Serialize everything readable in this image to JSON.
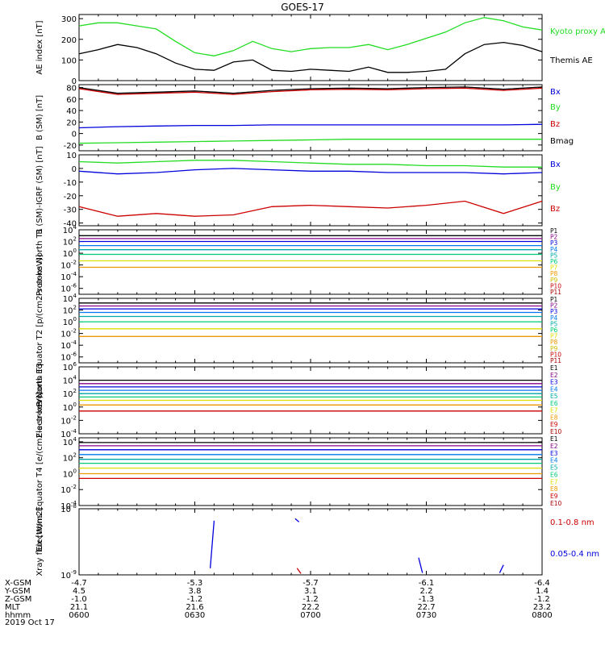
{
  "title": "GOES-17",
  "date": "2019 Oct 17",
  "colors": {
    "green": "#22dd22",
    "black": "#000000",
    "blue": "#0000dd",
    "red": "#cc0000",
    "cyan": "#00cccc",
    "teal": "#00aaaa",
    "yellow": "#dddd00",
    "orange": "#ee9900",
    "gold": "#ccbb00",
    "darkred": "#aa0000",
    "navy": "#000099",
    "purple": "#880088"
  },
  "ephemeris": {
    "rows": [
      {
        "label": "X-GSM",
        "values": [
          "-4.7",
          "-5.3",
          "-5.7",
          "-6.1",
          "-6.4"
        ]
      },
      {
        "label": "Y-GSM",
        "values": [
          "4.5",
          "3.8",
          "3.1",
          "2.2",
          "1.4"
        ]
      },
      {
        "label": "Z-GSM",
        "values": [
          "-1.0",
          "-1.2",
          "-1.2",
          "-1.3",
          "-1.2"
        ]
      },
      {
        "label": "MLT",
        "values": [
          "21.1",
          "21.6",
          "22.2",
          "22.7",
          "23.2"
        ]
      },
      {
        "label": "hhmm",
        "values": [
          "0600",
          "0630",
          "0700",
          "0730",
          "0800"
        ]
      }
    ]
  },
  "chart_data": [
    {
      "id": "ae",
      "type": "line",
      "ylabel": "AE index [nT]",
      "ylim": [
        0,
        320
      ],
      "ticks": [
        0,
        100,
        200,
        300
      ],
      "tick_labels": [
        "0",
        "100",
        "200",
        "300"
      ],
      "log": false,
      "x": [
        0,
        5,
        10,
        15,
        20,
        25,
        30,
        35,
        40,
        45,
        50,
        55,
        60,
        65,
        70,
        75,
        80,
        85,
        90,
        95,
        100,
        105,
        110,
        115,
        120
      ],
      "legend": [
        {
          "text": "Kyoto proxy AE",
          "color": "#22dd22"
        },
        {
          "text": "Themis AE",
          "color": "#000000"
        }
      ],
      "series": [
        {
          "name": "Kyoto proxy AE",
          "color": "#22dd22",
          "values": [
            265,
            280,
            280,
            265,
            250,
            190,
            135,
            120,
            145,
            190,
            155,
            140,
            155,
            160,
            160,
            175,
            150,
            175,
            205,
            235,
            280,
            305,
            290,
            260,
            245
          ]
        },
        {
          "name": "Themis AE",
          "color": "#000000",
          "values": [
            130,
            150,
            175,
            160,
            130,
            85,
            55,
            50,
            90,
            100,
            50,
            45,
            55,
            50,
            45,
            65,
            40,
            40,
            45,
            55,
            130,
            175,
            185,
            170,
            140
          ]
        }
      ]
    },
    {
      "id": "bsm",
      "type": "line",
      "ylabel": "B (SM) [nT]",
      "ylim": [
        -30,
        85
      ],
      "ticks": [
        -20,
        0,
        20,
        40,
        60,
        80
      ],
      "tick_labels": [
        "-20",
        "0",
        "20",
        "40",
        "60",
        "80"
      ],
      "log": false,
      "x": [
        0,
        10,
        20,
        30,
        40,
        50,
        60,
        70,
        80,
        90,
        100,
        110,
        120
      ],
      "legend": [
        {
          "text": "Bx",
          "color": "#0000dd"
        },
        {
          "text": "By",
          "color": "#22dd22"
        },
        {
          "text": "Bz",
          "color": "#cc0000"
        },
        {
          "text": "Bmag",
          "color": "#000000"
        }
      ],
      "series": [
        {
          "name": "Bx",
          "color": "#0000dd",
          "values": [
            10,
            12,
            13,
            14,
            14,
            15,
            15,
            15,
            15,
            15,
            15,
            15,
            16
          ]
        },
        {
          "name": "By",
          "color": "#22dd22",
          "values": [
            -17,
            -16,
            -15,
            -14,
            -13,
            -12,
            -11,
            -10,
            -10,
            -10,
            -10,
            -10,
            -10
          ]
        },
        {
          "name": "Bz",
          "color": "#cc0000",
          "values": [
            78,
            68,
            70,
            72,
            68,
            73,
            76,
            77,
            76,
            78,
            79,
            75,
            79
          ]
        },
        {
          "name": "Bmag",
          "color": "#000000",
          "values": [
            80,
            70,
            72,
            74,
            70,
            75,
            78,
            79,
            78,
            80,
            81,
            77,
            81
          ]
        }
      ]
    },
    {
      "id": "bigrf",
      "type": "line",
      "ylabel": "B (SM)-IGRF (SM) [nT]",
      "ylim": [
        -42,
        10
      ],
      "ticks": [
        -40,
        -30,
        -20,
        -10,
        0,
        10
      ],
      "tick_labels": [
        "-40",
        "-30",
        "-20",
        "-10",
        "0",
        "10"
      ],
      "log": false,
      "x": [
        0,
        10,
        20,
        30,
        40,
        50,
        60,
        70,
        80,
        90,
        100,
        110,
        120
      ],
      "legend": [
        {
          "text": "Bx",
          "color": "#0000dd"
        },
        {
          "text": "By",
          "color": "#22dd22"
        },
        {
          "text": "Bz",
          "color": "#cc0000"
        }
      ],
      "series": [
        {
          "name": "Bx",
          "color": "#0000dd",
          "values": [
            -2,
            -4,
            -3,
            -1,
            0,
            -1,
            -2,
            -2,
            -3,
            -3,
            -3,
            -4,
            -3
          ]
        },
        {
          "name": "By",
          "color": "#22dd22",
          "values": [
            5,
            4,
            5,
            6,
            6,
            5,
            4,
            3,
            3,
            2,
            2,
            1,
            1
          ]
        },
        {
          "name": "Bz",
          "color": "#cc0000",
          "values": [
            -28,
            -35,
            -33,
            -35,
            -34,
            -28,
            -27,
            -28,
            -29,
            -27,
            -24,
            -33,
            -24
          ]
        }
      ]
    },
    {
      "id": "pnorth",
      "type": "line",
      "ylabel": "Protons North T1",
      "ylim": [
        -7,
        4
      ],
      "ticks": [
        -6,
        -4,
        -2,
        0,
        2,
        4
      ],
      "tick_labels": [
        "10-6",
        "10-4",
        "10-2",
        "100",
        "102",
        "104"
      ],
      "log": true,
      "x": [
        0,
        120
      ],
      "legend": [
        {
          "text": "P1",
          "color": "#000000"
        },
        {
          "text": "P2",
          "color": "#880088"
        },
        {
          "text": "P3",
          "color": "#0000dd"
        },
        {
          "text": "P4",
          "color": "#0077ee"
        },
        {
          "text": "P5",
          "color": "#00aaaa"
        },
        {
          "text": "P6",
          "color": "#00cc77"
        },
        {
          "text": "P7",
          "color": "#dddd00"
        },
        {
          "text": "P8",
          "color": "#ee9900"
        },
        {
          "text": "P9",
          "color": "#ccbb00"
        },
        {
          "text": "P10",
          "color": "#cc0000"
        },
        {
          "text": "P11",
          "color": "#aa0000"
        }
      ],
      "series": [
        {
          "name": "P1",
          "color": "#000000",
          "values": [
            3.0,
            3.0
          ]
        },
        {
          "name": "P2",
          "color": "#880088",
          "values": [
            2.5,
            2.5
          ]
        },
        {
          "name": "P3",
          "color": "#0000dd",
          "values": [
            2.0,
            2.0
          ]
        },
        {
          "name": "P4",
          "color": "#0077ee",
          "values": [
            1.3,
            1.3
          ]
        },
        {
          "name": "P5",
          "color": "#00aaaa",
          "values": [
            0.6,
            0.6
          ]
        },
        {
          "name": "P6",
          "color": "#00cc77",
          "values": [
            -0.2,
            -0.2
          ]
        },
        {
          "name": "P7",
          "color": "#dddd00",
          "values": [
            -1.3,
            -1.3
          ]
        },
        {
          "name": "P8",
          "color": "#ee9900",
          "values": [
            -2.4,
            -2.4
          ]
        }
      ]
    },
    {
      "id": "pequator",
      "type": "line",
      "ylabel": "Protons Equator T2 [p/(cm2-s-sr-keV)]",
      "ylim": [
        -7,
        4
      ],
      "ticks": [
        -6,
        -4,
        -2,
        0,
        2,
        4
      ],
      "tick_labels": [
        "10-6",
        "10-4",
        "10-2",
        "100",
        "102",
        "104"
      ],
      "log": true,
      "x": [
        0,
        120
      ],
      "legend": [
        {
          "text": "P1",
          "color": "#000000"
        },
        {
          "text": "P2",
          "color": "#880088"
        },
        {
          "text": "P3",
          "color": "#0000dd"
        },
        {
          "text": "P4",
          "color": "#0077ee"
        },
        {
          "text": "P5",
          "color": "#00aaaa"
        },
        {
          "text": "P6",
          "color": "#00cc77"
        },
        {
          "text": "P7",
          "color": "#dddd00"
        },
        {
          "text": "P8",
          "color": "#ee9900"
        },
        {
          "text": "P9",
          "color": "#ccbb00"
        },
        {
          "text": "P10",
          "color": "#cc0000"
        },
        {
          "text": "P11",
          "color": "#aa0000"
        }
      ],
      "series": [
        {
          "name": "P1",
          "color": "#000000",
          "values": [
            3.2,
            3.2
          ]
        },
        {
          "name": "P2",
          "color": "#880088",
          "values": [
            2.7,
            2.7
          ]
        },
        {
          "name": "P3",
          "color": "#0000dd",
          "values": [
            2.2,
            2.2
          ]
        },
        {
          "name": "P4",
          "color": "#0077ee",
          "values": [
            1.6,
            1.6
          ]
        },
        {
          "name": "P5",
          "color": "#00aaaa",
          "values": [
            0.9,
            0.9
          ]
        },
        {
          "name": "P6",
          "color": "#00cc77",
          "values": [
            0.0,
            0.0
          ]
        },
        {
          "name": "P7",
          "color": "#dddd00",
          "values": [
            -1.2,
            -1.2
          ]
        },
        {
          "name": "P8",
          "color": "#ee9900",
          "values": [
            -2.5,
            -2.5
          ]
        }
      ]
    },
    {
      "id": "enorth",
      "type": "line",
      "ylabel": "Electrons North T3",
      "ylim": [
        -4,
        6
      ],
      "ticks": [
        -4,
        -2,
        0,
        2,
        4,
        6
      ],
      "tick_labels": [
        "10-4",
        "10-2",
        "100",
        "102",
        "104",
        "106"
      ],
      "log": true,
      "x": [
        0,
        120
      ],
      "legend": [
        {
          "text": "E1",
          "color": "#000000"
        },
        {
          "text": "E2",
          "color": "#880088"
        },
        {
          "text": "E3",
          "color": "#0000dd"
        },
        {
          "text": "E4",
          "color": "#0077ee"
        },
        {
          "text": "E5",
          "color": "#00aaaa"
        },
        {
          "text": "E6",
          "color": "#00cc77"
        },
        {
          "text": "E7",
          "color": "#dddd00"
        },
        {
          "text": "E8",
          "color": "#ee9900"
        },
        {
          "text": "E9",
          "color": "#cc0000"
        },
        {
          "text": "E10",
          "color": "#aa0000"
        }
      ],
      "series": [
        {
          "name": "E1",
          "color": "#000000",
          "values": [
            4.0,
            4.0
          ]
        },
        {
          "name": "E2",
          "color": "#880088",
          "values": [
            3.5,
            3.5
          ]
        },
        {
          "name": "E3",
          "color": "#0000dd",
          "values": [
            3.0,
            3.0
          ]
        },
        {
          "name": "E4",
          "color": "#0077ee",
          "values": [
            2.5,
            2.5
          ]
        },
        {
          "name": "E5",
          "color": "#00aaaa",
          "values": [
            2.0,
            2.0
          ]
        },
        {
          "name": "E6",
          "color": "#00cc77",
          "values": [
            1.5,
            1.5
          ]
        },
        {
          "name": "E7",
          "color": "#dddd00",
          "values": [
            1.0,
            1.0
          ]
        },
        {
          "name": "E8",
          "color": "#ee9900",
          "values": [
            0.3,
            0.3
          ]
        },
        {
          "name": "E9",
          "color": "#cc0000",
          "values": [
            -0.6,
            -0.6
          ]
        }
      ]
    },
    {
      "id": "eequator",
      "type": "line",
      "ylabel": "Electrons Equator T4 [e/(cm2-s-sr-keV)]",
      "ylim": [
        -4,
        4.5
      ],
      "ticks": [
        -4,
        -2,
        0,
        2,
        4
      ],
      "tick_labels": [
        "10-4",
        "10-2",
        "100",
        "102",
        "104"
      ],
      "log": true,
      "x": [
        0,
        120
      ],
      "legend": [
        {
          "text": "E1",
          "color": "#000000"
        },
        {
          "text": "E2",
          "color": "#880088"
        },
        {
          "text": "E3",
          "color": "#0000dd"
        },
        {
          "text": "E4",
          "color": "#0077ee"
        },
        {
          "text": "E5",
          "color": "#00aaaa"
        },
        {
          "text": "E6",
          "color": "#00cc77"
        },
        {
          "text": "E7",
          "color": "#dddd00"
        },
        {
          "text": "E8",
          "color": "#ee9900"
        },
        {
          "text": "E9",
          "color": "#cc0000"
        },
        {
          "text": "E10",
          "color": "#aa0000"
        }
      ],
      "series": [
        {
          "name": "E1",
          "color": "#000000",
          "values": [
            3.9,
            3.9
          ]
        },
        {
          "name": "E2",
          "color": "#880088",
          "values": [
            3.5,
            3.5
          ]
        },
        {
          "name": "E3",
          "color": "#0000dd",
          "values": [
            3.0,
            3.0
          ]
        },
        {
          "name": "E4",
          "color": "#0077ee",
          "values": [
            2.4,
            2.4
          ]
        },
        {
          "name": "E5",
          "color": "#00aaaa",
          "values": [
            1.8,
            1.8
          ]
        },
        {
          "name": "E6",
          "color": "#00cc77",
          "values": [
            1.3,
            1.3
          ]
        },
        {
          "name": "E7",
          "color": "#dddd00",
          "values": [
            0.7,
            0.7
          ]
        },
        {
          "name": "E8",
          "color": "#ee9900",
          "values": [
            0.0,
            0.0
          ]
        },
        {
          "name": "E9",
          "color": "#cc0000",
          "values": [
            -0.6,
            -0.6
          ]
        }
      ]
    },
    {
      "id": "xray",
      "type": "line",
      "ylabel": "Xray flux [W/m2]",
      "ylim": [
        -9,
        -8
      ],
      "ticks": [
        -9,
        -8
      ],
      "tick_labels": [
        "10-9",
        "10-8"
      ],
      "log": true,
      "legend": [
        {
          "text": "0.1-0.8 nm",
          "color": "#cc0000"
        },
        {
          "text": "0.05-0.4 nm",
          "color": "#0000dd"
        }
      ],
      "segments": [
        {
          "color": "#0000dd",
          "x": [
            34,
            35
          ],
          "y": [
            -8.9,
            -8.18
          ]
        },
        {
          "color": "#0000dd",
          "x": [
            56,
            57
          ],
          "y": [
            -8.15,
            -8.2
          ]
        },
        {
          "color": "#0000dd",
          "x": [
            88,
            89
          ],
          "y": [
            -8.74,
            -8.97
          ]
        },
        {
          "color": "#0000dd",
          "x": [
            109,
            110
          ],
          "y": [
            -8.97,
            -8.85
          ]
        },
        {
          "color": "#cc0000",
          "x": [
            56.5,
            57.5
          ],
          "y": [
            -8.9,
            -8.98
          ]
        }
      ]
    }
  ]
}
